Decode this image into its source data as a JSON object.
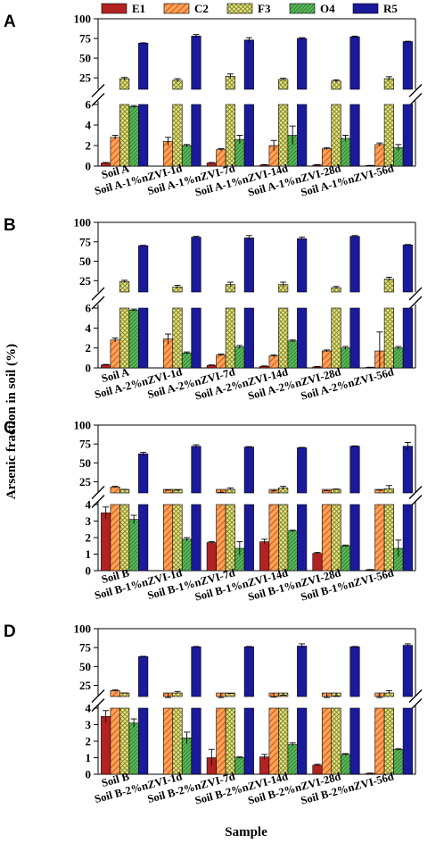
{
  "figure": {
    "ylabel": "Arsenic fraction in soil (%)",
    "xlabel": "Sample"
  },
  "legend": [
    {
      "name": "E1",
      "color": "#b22222",
      "pattern": "solid"
    },
    {
      "name": "C2",
      "color": "#f08020",
      "pattern": "diagonal-hatch"
    },
    {
      "name": "F3",
      "color": "#c8c850",
      "pattern": "cross-hatch"
    },
    {
      "name": "O4",
      "color": "#2e8b2e",
      "pattern": "dense-diagonal"
    },
    {
      "name": "R5",
      "color": "#1a1a9a",
      "pattern": "solid"
    }
  ],
  "chart_data": [
    {
      "type": "bar",
      "panel": "A",
      "categories": [
        "Soil A",
        "Soil A-1%nZVI-1d",
        "Soil A-1%nZVI-7d",
        "Soil A-1%nZVI-14d",
        "Soil A-1%nZVI-28d",
        "Soil A-1%nZVI-56d"
      ],
      "series": [
        {
          "name": "E1",
          "values": [
            0.3,
            0,
            0.3,
            0.1,
            0.1,
            0.05
          ],
          "errors": [
            0.05,
            0,
            0.05,
            0.05,
            0.05,
            0.02
          ]
        },
        {
          "name": "C2",
          "values": [
            2.8,
            2.4,
            1.6,
            2.0,
            1.7,
            2.1
          ],
          "errors": [
            0.2,
            0.4,
            0.1,
            0.5,
            0.1,
            0.15
          ]
        },
        {
          "name": "F3",
          "values": [
            24,
            22,
            27,
            23,
            21,
            24
          ],
          "errors": [
            1.5,
            2,
            3,
            1.5,
            1.5,
            2.5
          ]
        },
        {
          "name": "O4",
          "values": [
            5.8,
            2.0,
            2.6,
            3.0,
            2.7,
            1.8
          ],
          "errors": [
            0.1,
            0.1,
            0.4,
            0.9,
            0.3,
            0.3
          ]
        },
        {
          "name": "R5",
          "values": [
            69,
            78,
            73,
            75,
            77,
            71
          ],
          "errors": [
            0.5,
            2,
            3,
            1,
            1,
            0.5
          ]
        }
      ],
      "y_segments": [
        {
          "range": [
            0,
            6
          ],
          "ticks": [
            0,
            2,
            4,
            6
          ]
        },
        {
          "range": [
            15,
            100
          ],
          "ticks": [
            25,
            50,
            75,
            100
          ]
        }
      ]
    },
    {
      "type": "bar",
      "panel": "B",
      "categories": [
        "Soil A",
        "Soil A-2%nZVI-1d",
        "Soil A-2%nZVI-7d",
        "Soil A-2%nZVI-14d",
        "Soil A-2%nZVI-28d",
        "Soil A-2%nZVI-56d"
      ],
      "series": [
        {
          "name": "E1",
          "values": [
            0.3,
            0,
            0.25,
            0.15,
            0.1,
            0.05
          ],
          "errors": [
            0.05,
            0,
            0.05,
            0.05,
            0.05,
            0.02
          ]
        },
        {
          "name": "C2",
          "values": [
            2.8,
            2.9,
            1.3,
            1.2,
            1.7,
            1.7
          ],
          "errors": [
            0.2,
            0.5,
            0.1,
            0.1,
            0.1,
            1.9
          ]
        },
        {
          "name": "F3",
          "values": [
            24,
            17,
            20,
            20,
            16,
            27
          ],
          "errors": [
            1.5,
            2,
            3,
            3,
            1.5,
            2.5
          ]
        },
        {
          "name": "O4",
          "values": [
            5.8,
            1.5,
            2.1,
            2.7,
            2.0,
            2.0
          ],
          "errors": [
            0.1,
            0.1,
            0.15,
            0.1,
            0.15,
            0.15
          ]
        },
        {
          "name": "R5",
          "values": [
            70,
            81,
            80,
            79,
            82,
            71
          ],
          "errors": [
            0.5,
            1,
            3,
            2,
            1,
            0.5
          ]
        }
      ],
      "y_segments": [
        {
          "range": [
            0,
            6
          ],
          "ticks": [
            0,
            2,
            4,
            6
          ]
        },
        {
          "range": [
            15,
            100
          ],
          "ticks": [
            25,
            50,
            75,
            100
          ]
        }
      ]
    },
    {
      "type": "bar",
      "panel": "C",
      "categories": [
        "Soil B",
        "Soil B-1%nZVI-1d",
        "Soil B-1%nZVI-7d",
        "Soil B-1%nZVI-14d",
        "Soil B-1%nZVI-28d",
        "Soil B-1%nZVI-56d"
      ],
      "series": [
        {
          "name": "E1",
          "values": [
            3.5,
            0,
            1.7,
            1.75,
            1.05,
            0.05
          ],
          "errors": [
            0.35,
            0,
            0.05,
            0.15,
            0.05,
            0.02
          ]
        },
        {
          "name": "C2",
          "values": [
            18,
            13,
            10,
            11,
            12,
            12
          ],
          "errors": [
            1,
            1,
            1,
            2,
            1,
            2
          ]
        },
        {
          "name": "F3",
          "values": [
            14,
            13,
            15,
            17,
            14,
            16
          ],
          "errors": [
            1,
            1,
            2,
            2,
            1.5,
            4
          ]
        },
        {
          "name": "O4",
          "values": [
            3.1,
            1.9,
            1.35,
            2.4,
            1.5,
            1.35
          ],
          "errors": [
            0.25,
            0.1,
            0.4,
            0.05,
            0.05,
            0.5
          ]
        },
        {
          "name": "R5",
          "values": [
            62,
            72,
            71,
            70,
            72,
            72
          ],
          "errors": [
            2,
            2,
            0.5,
            0.5,
            0.5,
            5
          ]
        }
      ],
      "y_segments": [
        {
          "range": [
            0,
            4
          ],
          "ticks": [
            0,
            1,
            2,
            3,
            4
          ]
        },
        {
          "range": [
            15,
            100
          ],
          "ticks": [
            25,
            50,
            75,
            100
          ]
        }
      ]
    },
    {
      "type": "bar",
      "panel": "D",
      "categories": [
        "Soil B",
        "Soil B-2%nZVI-1d",
        "Soil B-2%nZVI-7d",
        "Soil B-2%nZVI-14d",
        "Soil B-2%nZVI-28d",
        "Soil B-2%nZVI-56d"
      ],
      "series": [
        {
          "name": "E1",
          "values": [
            3.5,
            0,
            1.0,
            1.05,
            0.55,
            0.05
          ],
          "errors": [
            0.35,
            0,
            0.5,
            0.15,
            0.05,
            0.02
          ]
        },
        {
          "name": "C2",
          "values": [
            18,
            8,
            8,
            8,
            8,
            8
          ],
          "errors": [
            1,
            1,
            1,
            1.5,
            1,
            1
          ]
        },
        {
          "name": "F3",
          "values": [
            14,
            15,
            13,
            11,
            10,
            14
          ],
          "errors": [
            1,
            2,
            1.5,
            1,
            1,
            4
          ]
        },
        {
          "name": "O4",
          "values": [
            3.1,
            2.2,
            1.0,
            1.8,
            1.2,
            1.5
          ],
          "errors": [
            0.25,
            0.35,
            0.05,
            0.1,
            0.05,
            0.05
          ]
        },
        {
          "name": "R5",
          "values": [
            63,
            76,
            76,
            77,
            76,
            78
          ],
          "errors": [
            0.5,
            0.5,
            0.5,
            3,
            0.5,
            2
          ]
        }
      ],
      "y_segments": [
        {
          "range": [
            0,
            4
          ],
          "ticks": [
            0,
            1,
            2,
            3,
            4
          ]
        },
        {
          "range": [
            15,
            100
          ],
          "ticks": [
            25,
            50,
            75,
            100
          ]
        }
      ]
    }
  ]
}
